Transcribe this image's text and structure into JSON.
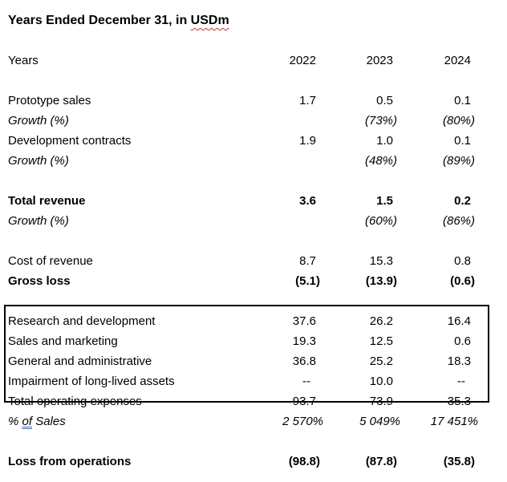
{
  "title": {
    "prefix": "Years Ended December 31, in ",
    "flagged": "USDm"
  },
  "colors": {
    "text": "#000000",
    "background": "#ffffff",
    "box_border": "#000000",
    "spellcheck_underline": "#e0301e",
    "grammar_underline": "#2f6fd6"
  },
  "table": {
    "unit_note": "USDm",
    "year_columns": [
      "2022",
      "2023",
      "2024"
    ],
    "rows": [
      {
        "type": "header",
        "label": "Years",
        "values": [
          "2022",
          "2023",
          "2024"
        ]
      },
      {
        "type": "spacer"
      },
      {
        "type": "data",
        "label": "Prototype sales",
        "values": [
          "1.7",
          "0.5",
          "0.1"
        ]
      },
      {
        "type": "data",
        "style": "italic",
        "label": "Growth (%)",
        "values": [
          "",
          "(73%)",
          "(80%)"
        ]
      },
      {
        "type": "data",
        "label": "Development contracts",
        "values": [
          "1.9",
          "1.0",
          "0.1"
        ]
      },
      {
        "type": "data",
        "style": "italic",
        "label": "Growth (%)",
        "values": [
          "",
          "(48%)",
          "(89%)"
        ]
      },
      {
        "type": "spacer"
      },
      {
        "type": "data",
        "style": "bold",
        "label": "Total revenue",
        "values": [
          "3.6",
          "1.5",
          "0.2"
        ]
      },
      {
        "type": "data",
        "style": "italic",
        "label": "Growth (%)",
        "values": [
          "",
          "(60%)",
          "(86%)"
        ]
      },
      {
        "type": "spacer"
      },
      {
        "type": "data",
        "label": "Cost of revenue",
        "values": [
          "8.7",
          "15.3",
          "0.8"
        ]
      },
      {
        "type": "data",
        "style": "bold",
        "label": "Gross loss",
        "values": [
          "(5.1)",
          "(13.9)",
          "(0.6)"
        ]
      },
      {
        "type": "spacer"
      },
      {
        "type": "data",
        "label": "Research and development",
        "values": [
          "37.6",
          "26.2",
          "16.4"
        ],
        "boxed": true
      },
      {
        "type": "data",
        "label": "Sales and marketing",
        "values": [
          "19.3",
          "12.5",
          "0.6"
        ],
        "boxed": true
      },
      {
        "type": "data",
        "label": "General and administrative",
        "values": [
          "36.8",
          "25.2",
          "18.3"
        ],
        "boxed": true
      },
      {
        "type": "data",
        "label": "Impairment of long-lived assets",
        "values": [
          "--",
          "10.0",
          "--"
        ],
        "boxed": true
      },
      {
        "type": "data",
        "label": "Total operating expenses",
        "values": [
          "93.7",
          "73.9",
          "35.3"
        ],
        "boxed": true
      },
      {
        "type": "data",
        "style": "italic",
        "label": "% of Sales",
        "pct": true,
        "label_parts": {
          "prefix": "% ",
          "flagged": "of",
          "suffix": " Sales"
        },
        "values": [
          "2 570%",
          "5 049%",
          "17 451%"
        ]
      },
      {
        "type": "spacer"
      },
      {
        "type": "data",
        "style": "bold",
        "label": "Loss from operations",
        "values": [
          "(98.8)",
          "(87.8)",
          "(35.8)"
        ]
      }
    ]
  }
}
